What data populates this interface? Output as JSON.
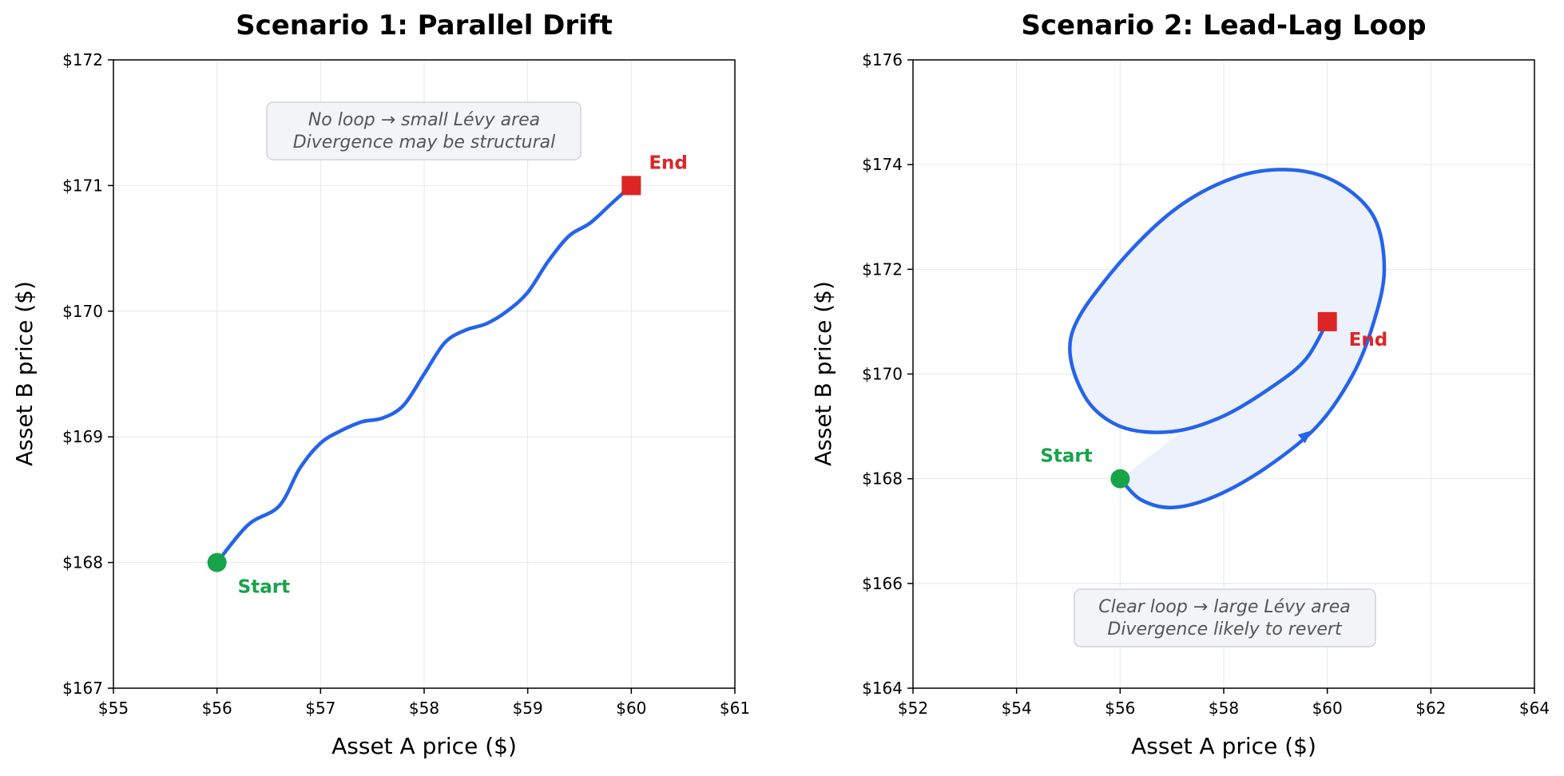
{
  "chart_data": [
    {
      "type": "line",
      "title": "Scenario 1: Parallel Drift",
      "xlabel": "Asset A price ($)",
      "ylabel": "Asset B price ($)",
      "xlim": [
        55,
        61
      ],
      "ylim": [
        167,
        172
      ],
      "x_ticks": [
        "$55",
        "$56",
        "$57",
        "$58",
        "$59",
        "$60",
        "$61"
      ],
      "y_ticks": [
        "$167",
        "$168",
        "$169",
        "$170",
        "$171",
        "$172"
      ],
      "grid": true,
      "series": [
        {
          "color": "#2563eb",
          "points": [
            [
              56.0,
              168.0
            ],
            [
              56.3,
              168.3
            ],
            [
              56.6,
              168.45
            ],
            [
              56.8,
              168.75
            ],
            [
              57.0,
              168.95
            ],
            [
              57.2,
              169.05
            ],
            [
              57.4,
              169.12
            ],
            [
              57.6,
              169.15
            ],
            [
              57.8,
              169.25
            ],
            [
              58.0,
              169.5
            ],
            [
              58.2,
              169.75
            ],
            [
              58.4,
              169.85
            ],
            [
              58.6,
              169.9
            ],
            [
              58.8,
              170.0
            ],
            [
              59.0,
              170.15
            ],
            [
              59.2,
              170.4
            ],
            [
              59.4,
              170.6
            ],
            [
              59.6,
              170.7
            ],
            [
              59.8,
              170.85
            ],
            [
              60.0,
              171.0
            ]
          ]
        }
      ],
      "start": {
        "x": 56,
        "y": 168,
        "label": "Start",
        "color": "#16a34a"
      },
      "end": {
        "x": 60,
        "y": 171,
        "label": "End",
        "color": "#dc2626"
      },
      "annotation": [
        "No loop → small Lévy area",
        "Divergence may be structural"
      ]
    },
    {
      "type": "line",
      "title": "Scenario 2: Lead-Lag Loop",
      "xlabel": "Asset A price ($)",
      "ylabel": "Asset B price ($)",
      "xlim": [
        52,
        64
      ],
      "ylim": [
        164,
        176
      ],
      "x_ticks": [
        "$52",
        "$54",
        "$56",
        "$58",
        "$60",
        "$62",
        "$64"
      ],
      "y_ticks": [
        "$164",
        "$166",
        "$168",
        "$170",
        "$172",
        "$174",
        "$176"
      ],
      "grid": true,
      "series": [
        {
          "color": "#2563eb",
          "fill": "#eaf0fc",
          "points": [
            [
              56.0,
              168.0
            ],
            [
              56.4,
              167.6
            ],
            [
              57.0,
              167.45
            ],
            [
              57.8,
              167.65
            ],
            [
              58.8,
              168.2
            ],
            [
              59.8,
              169.0
            ],
            [
              60.5,
              170.0
            ],
            [
              60.9,
              171.0
            ],
            [
              61.1,
              172.0
            ],
            [
              60.9,
              173.0
            ],
            [
              60.2,
              173.65
            ],
            [
              59.3,
              173.9
            ],
            [
              58.2,
              173.75
            ],
            [
              57.0,
              173.1
            ],
            [
              55.8,
              171.9
            ],
            [
              55.05,
              170.7
            ],
            [
              55.3,
              169.6
            ],
            [
              56.0,
              169.0
            ],
            [
              57.0,
              168.9
            ],
            [
              58.0,
              169.2
            ],
            [
              59.0,
              169.8
            ],
            [
              59.6,
              170.3
            ],
            [
              60.0,
              171.0
            ]
          ]
        }
      ],
      "start": {
        "x": 56,
        "y": 168,
        "label": "Start",
        "color": "#16a34a"
      },
      "end": {
        "x": 60,
        "y": 171,
        "label": "End",
        "color": "#dc2626"
      },
      "annotation": [
        "Clear loop → large Lévy area",
        "Divergence likely to revert"
      ]
    }
  ]
}
